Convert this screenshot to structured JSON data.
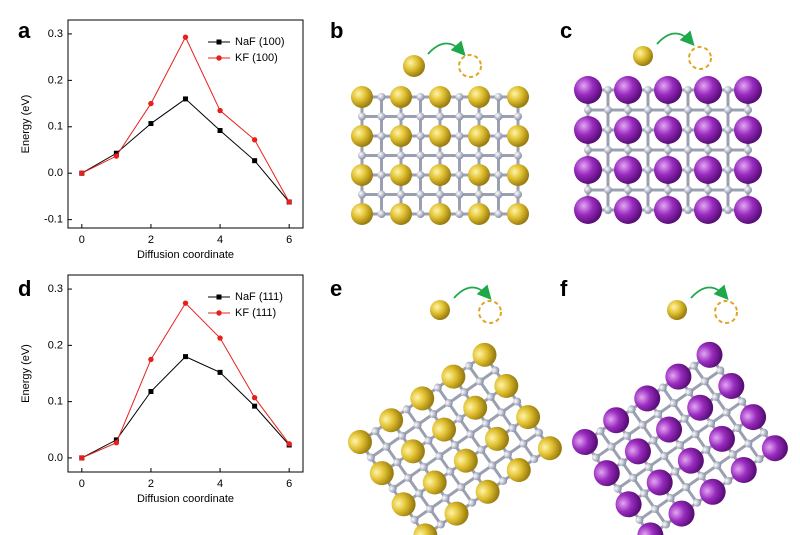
{
  "panel_labels": [
    "a",
    "b",
    "c",
    "d",
    "e",
    "f"
  ],
  "chart_data": [
    {
      "type": "line",
      "x_label": "Diffusion coordinate",
      "y_label": "Energy (eV)",
      "x": [
        0,
        1,
        2,
        3,
        4,
        5,
        6
      ],
      "xlim": [
        -0.4,
        6.4
      ],
      "xticks": [
        0,
        2,
        4,
        6
      ],
      "ylim": [
        -0.118,
        0.33
      ],
      "yticks": [
        -0.1,
        {
          "value": 0,
          "label": "0.0"
        },
        0.1,
        0.2,
        0.3
      ],
      "legend": "upper right",
      "series": [
        {
          "name": "NaF (100)",
          "color": "#000000",
          "marker": "square",
          "values": [
            0,
            0.043,
            0.107,
            0.16,
            0.092,
            0.027,
            -0.062
          ]
        },
        {
          "name": "KF (100)",
          "color": "#e8201c",
          "marker": "circle",
          "values": [
            0,
            0.037,
            0.15,
            0.293,
            0.135,
            0.072,
            -0.062
          ]
        }
      ]
    },
    {
      "type": "line",
      "x_label": "Diffusion coordinate",
      "y_label": "Energy (eV)",
      "x": [
        0,
        1,
        2,
        3,
        4,
        5,
        6
      ],
      "xlim": [
        -0.4,
        6.4
      ],
      "xticks": [
        0,
        2,
        4,
        6
      ],
      "ylim": [
        -0.025,
        0.325
      ],
      "yticks": [
        {
          "value": 0,
          "label": "0.0"
        },
        0.1,
        0.2,
        0.3
      ],
      "legend": "upper right",
      "series": [
        {
          "name": "NaF (111)",
          "color": "#000000",
          "marker": "square",
          "values": [
            0,
            0.032,
            0.118,
            0.18,
            0.152,
            0.092,
            0.023
          ]
        },
        {
          "name": "KF (111)",
          "color": "#e8201c",
          "marker": "circle",
          "values": [
            0,
            0.027,
            0.175,
            0.275,
            0.213,
            0.107,
            0.025
          ]
        }
      ]
    }
  ]
}
